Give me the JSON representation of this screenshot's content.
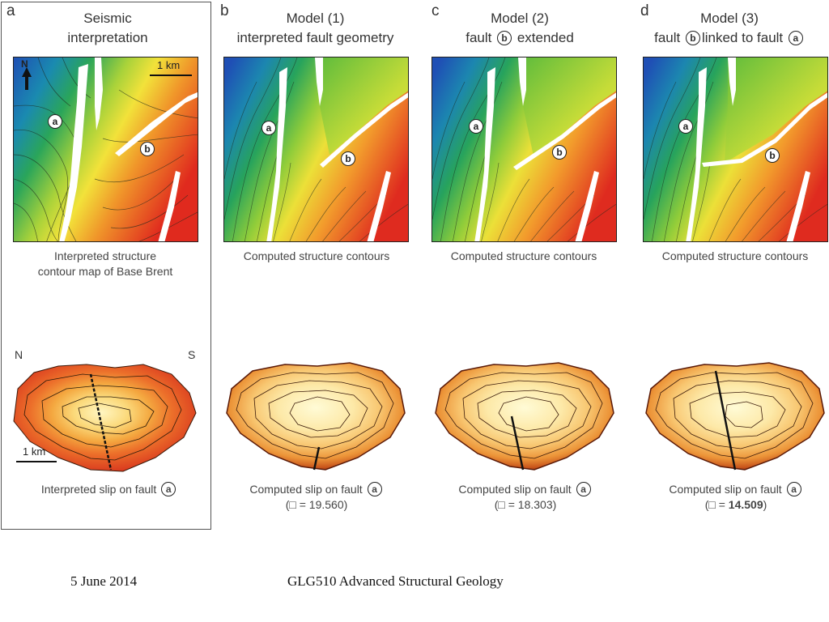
{
  "panels": [
    {
      "letter": "a",
      "title": [
        "Seismic",
        "interpretation"
      ],
      "map_caption": [
        "Interpreted structure",
        "contour map of Base Brent"
      ],
      "slip_caption": "Interpreted slip on fault",
      "slip_misfit": ""
    },
    {
      "letter": "b",
      "title": [
        "Model (1)",
        "interpreted fault geometry"
      ],
      "map_caption": [
        "Computed structure contours"
      ],
      "slip_caption": "Computed slip on fault",
      "slip_misfit": "(□ = 19.560)"
    },
    {
      "letter": "c",
      "title": [
        "Model (2)",
        "fault",
        "extended"
      ],
      "map_caption": [
        "Computed structure contours"
      ],
      "slip_caption": "Computed slip on fault",
      "slip_misfit": "(□ = 18.303)"
    },
    {
      "letter": "d",
      "title": [
        "Model (3)",
        "fault",
        "linked to fault"
      ],
      "map_caption": [
        "Computed structure contours"
      ],
      "slip_caption": "Computed slip on fault",
      "slip_misfit_prefix": "(□  =  ",
      "slip_misfit_bold": "14.509",
      "slip_misfit_suffix": ")"
    }
  ],
  "fault_labels": {
    "a": "a",
    "b": "b"
  },
  "north_label": "N",
  "scale_label": "1 km",
  "slip_section": {
    "left": "N",
    "right": "S",
    "scale": "1 km"
  },
  "footer": {
    "date": "5 June 2014",
    "course": "GLG510 Advanced Structural Geology"
  }
}
